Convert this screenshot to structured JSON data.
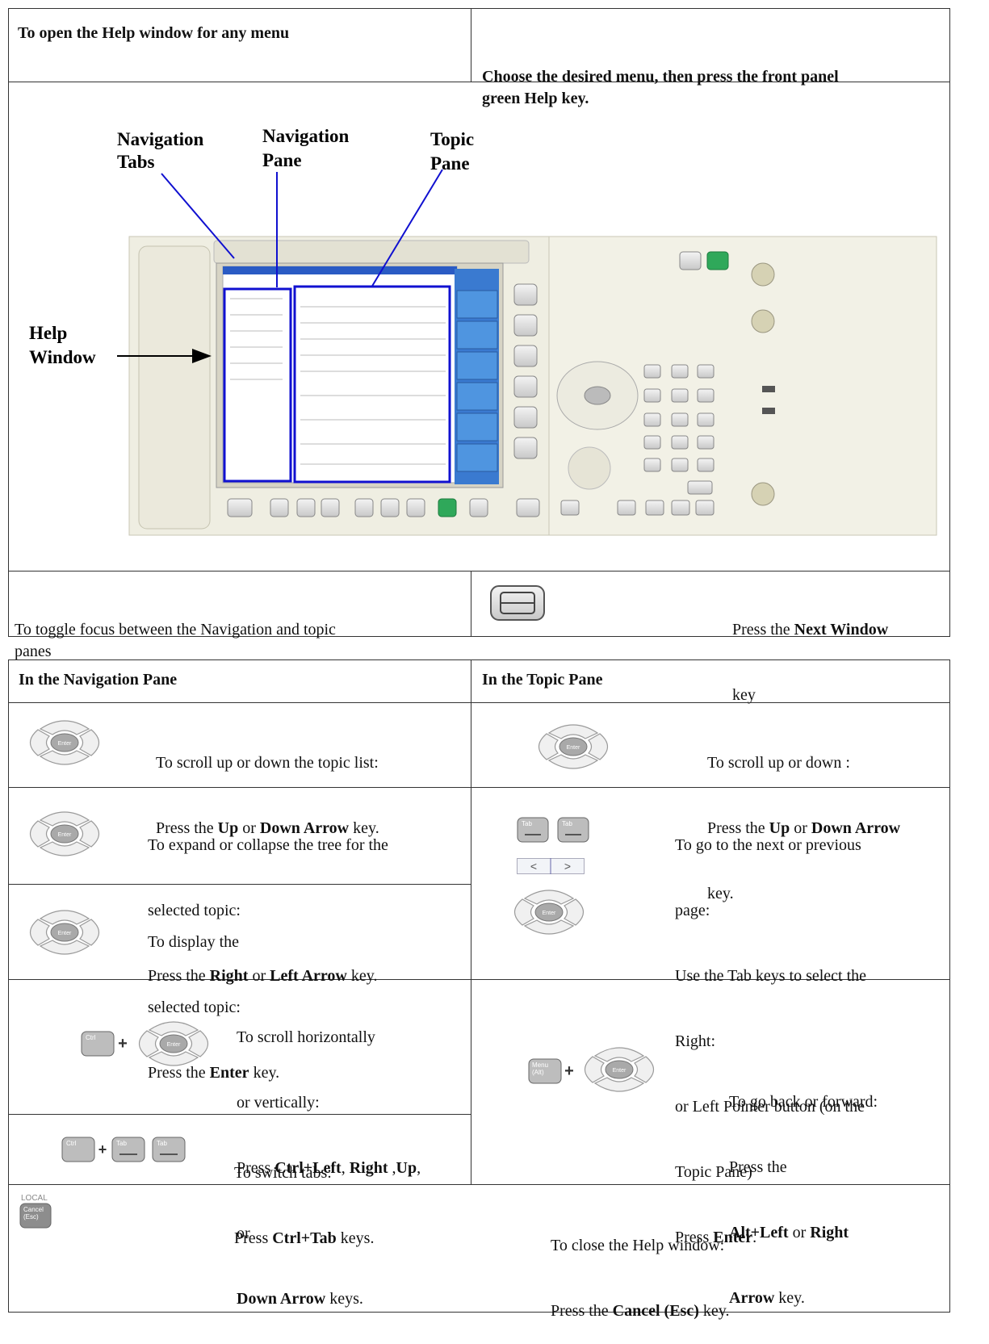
{
  "top_table": {
    "header": [
      "To open the Help window for any menu",
      [
        "Choose the desired menu, then press the front panel",
        "green Help key."
      ]
    ],
    "figure_labels": {
      "navigation_tabs": [
        "Navigation",
        "Tabs"
      ],
      "navigation_pane": [
        "Navigation",
        "Pane"
      ],
      "topic_pane": [
        "Topic",
        "Pane"
      ],
      "help_window": [
        "Help",
        "Window"
      ]
    },
    "toggle": {
      "action": [
        "To toggle focus between the Navigation and topic",
        "panes"
      ],
      "instruction": [
        [
          "Press the ",
          "Next Window"
        ],
        [
          "key"
        ]
      ]
    }
  },
  "bottom_table": {
    "header": [
      "In the Navigation Pane",
      "In the Topic Pane"
    ],
    "nav_scroll": [
      [
        "To scroll up or down the topic list:"
      ],
      [
        "Press the ",
        "Up",
        " or ",
        "Down Arrow",
        " key."
      ]
    ],
    "topic_scroll": [
      [
        "To scroll up or down :"
      ],
      [
        "Press the ",
        "Up",
        " or ",
        "Down Arrow"
      ],
      [
        "key."
      ]
    ],
    "nav_expand": [
      [
        "To expand or collapse the tree for the"
      ],
      [
        "selected topic:"
      ],
      [
        "Press the ",
        "Right",
        " or ",
        "Left Arrow",
        " key."
      ]
    ],
    "nav_display": [
      [
        "To display the"
      ],
      [
        "selected topic:"
      ],
      [
        "Press the ",
        "Enter",
        " key."
      ]
    ],
    "topic_page": [
      [
        "To go to the next or previous"
      ],
      [
        "page:"
      ],
      [
        "Use the Tab keys to select the"
      ],
      [
        "Right:"
      ],
      [
        "or Left Pointer button (on the"
      ],
      [
        "Topic Pane)"
      ],
      [
        "Press ",
        "Enter",
        "."
      ]
    ],
    "nav_scroll_hv": [
      [
        "To scroll horizontally"
      ],
      [
        "or vertically:"
      ],
      [
        "Press ",
        "Ctrl+Left",
        ", ",
        "Right",
        " ,",
        "Up",
        ","
      ],
      [
        "or"
      ],
      [
        "Down Arrow",
        " keys."
      ]
    ],
    "topic_back": [
      [
        "To go back or forward:"
      ],
      [
        "Press the"
      ],
      [
        "Alt+Left",
        " or ",
        "Right"
      ],
      [
        "Arrow",
        " key."
      ]
    ],
    "nav_tabs": [
      [
        "To switch tabs:"
      ],
      [
        "Press ",
        "Ctrl+Tab",
        " keys."
      ]
    ],
    "close": [
      [
        "To close the Help window:"
      ],
      [
        "Press the ",
        "Cancel (Esc)",
        " key."
      ]
    ]
  },
  "key_labels": {
    "enter": "Enter",
    "ctrl": "Ctrl",
    "tab": "Tab",
    "menu": [
      "Menu",
      "(Alt)"
    ],
    "local": "LOCAL",
    "cancel": [
      "Cancel",
      "(Esc)"
    ],
    "plus": "+",
    "left": "<",
    "right": ">"
  }
}
